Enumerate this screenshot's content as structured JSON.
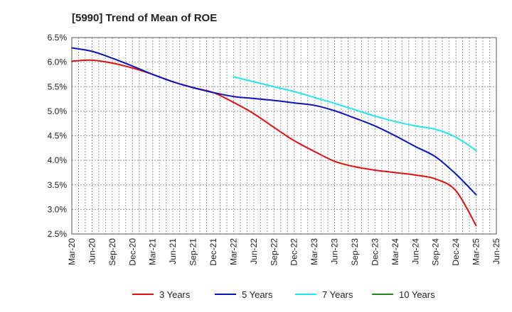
{
  "chart_data": {
    "type": "line",
    "title": "[5990]  Trend of Mean of ROE",
    "xlabel": "",
    "ylabel": "",
    "ylim": [
      2.5,
      6.5
    ],
    "grid": true,
    "legend_position": "bottom",
    "x": [
      "Mar-20",
      "Jun-20",
      "Sep-20",
      "Dec-20",
      "Mar-21",
      "Jun-21",
      "Sep-21",
      "Dec-21",
      "Mar-22",
      "Jun-22",
      "Sep-22",
      "Dec-22",
      "Mar-23",
      "Jun-23",
      "Sep-23",
      "Dec-23",
      "Mar-24",
      "Jun-24",
      "Sep-24",
      "Dec-24",
      "Mar-25",
      "Jun-25"
    ],
    "y_ticks": [
      "6.5%",
      "6.0%",
      "5.5%",
      "5.0%",
      "4.5%",
      "4.0%",
      "3.5%",
      "3.0%",
      "2.5%"
    ],
    "y_tick_values": [
      6.5,
      6.0,
      5.5,
      5.0,
      4.5,
      4.0,
      3.5,
      3.0,
      2.5
    ],
    "series": [
      {
        "name": "3 Years",
        "color": "#dd1111",
        "values": [
          6.02,
          6.04,
          5.98,
          5.88,
          5.75,
          5.6,
          5.48,
          5.38,
          5.18,
          4.95,
          4.67,
          4.4,
          4.18,
          3.98,
          3.87,
          3.8,
          3.75,
          3.7,
          3.62,
          3.38,
          2.67,
          null
        ]
      },
      {
        "name": "5 Years",
        "color": "#0a12bb",
        "values": [
          6.29,
          6.22,
          6.08,
          5.92,
          5.75,
          5.6,
          5.48,
          5.38,
          5.3,
          5.26,
          5.22,
          5.17,
          5.12,
          5.01,
          4.86,
          4.7,
          4.5,
          4.28,
          4.07,
          3.72,
          3.3,
          null
        ]
      },
      {
        "name": "7 Years",
        "color": "#22e6ef",
        "values": [
          null,
          null,
          null,
          null,
          null,
          null,
          null,
          null,
          5.7,
          5.6,
          5.5,
          5.4,
          5.28,
          5.16,
          5.03,
          4.9,
          4.79,
          4.7,
          4.63,
          4.47,
          4.2,
          null
        ]
      },
      {
        "name": "10 Years",
        "color": "#1e8a1e",
        "values": [
          null,
          null,
          null,
          null,
          null,
          null,
          null,
          null,
          null,
          null,
          null,
          null,
          null,
          null,
          null,
          null,
          null,
          null,
          null,
          null,
          null,
          null
        ]
      }
    ]
  }
}
